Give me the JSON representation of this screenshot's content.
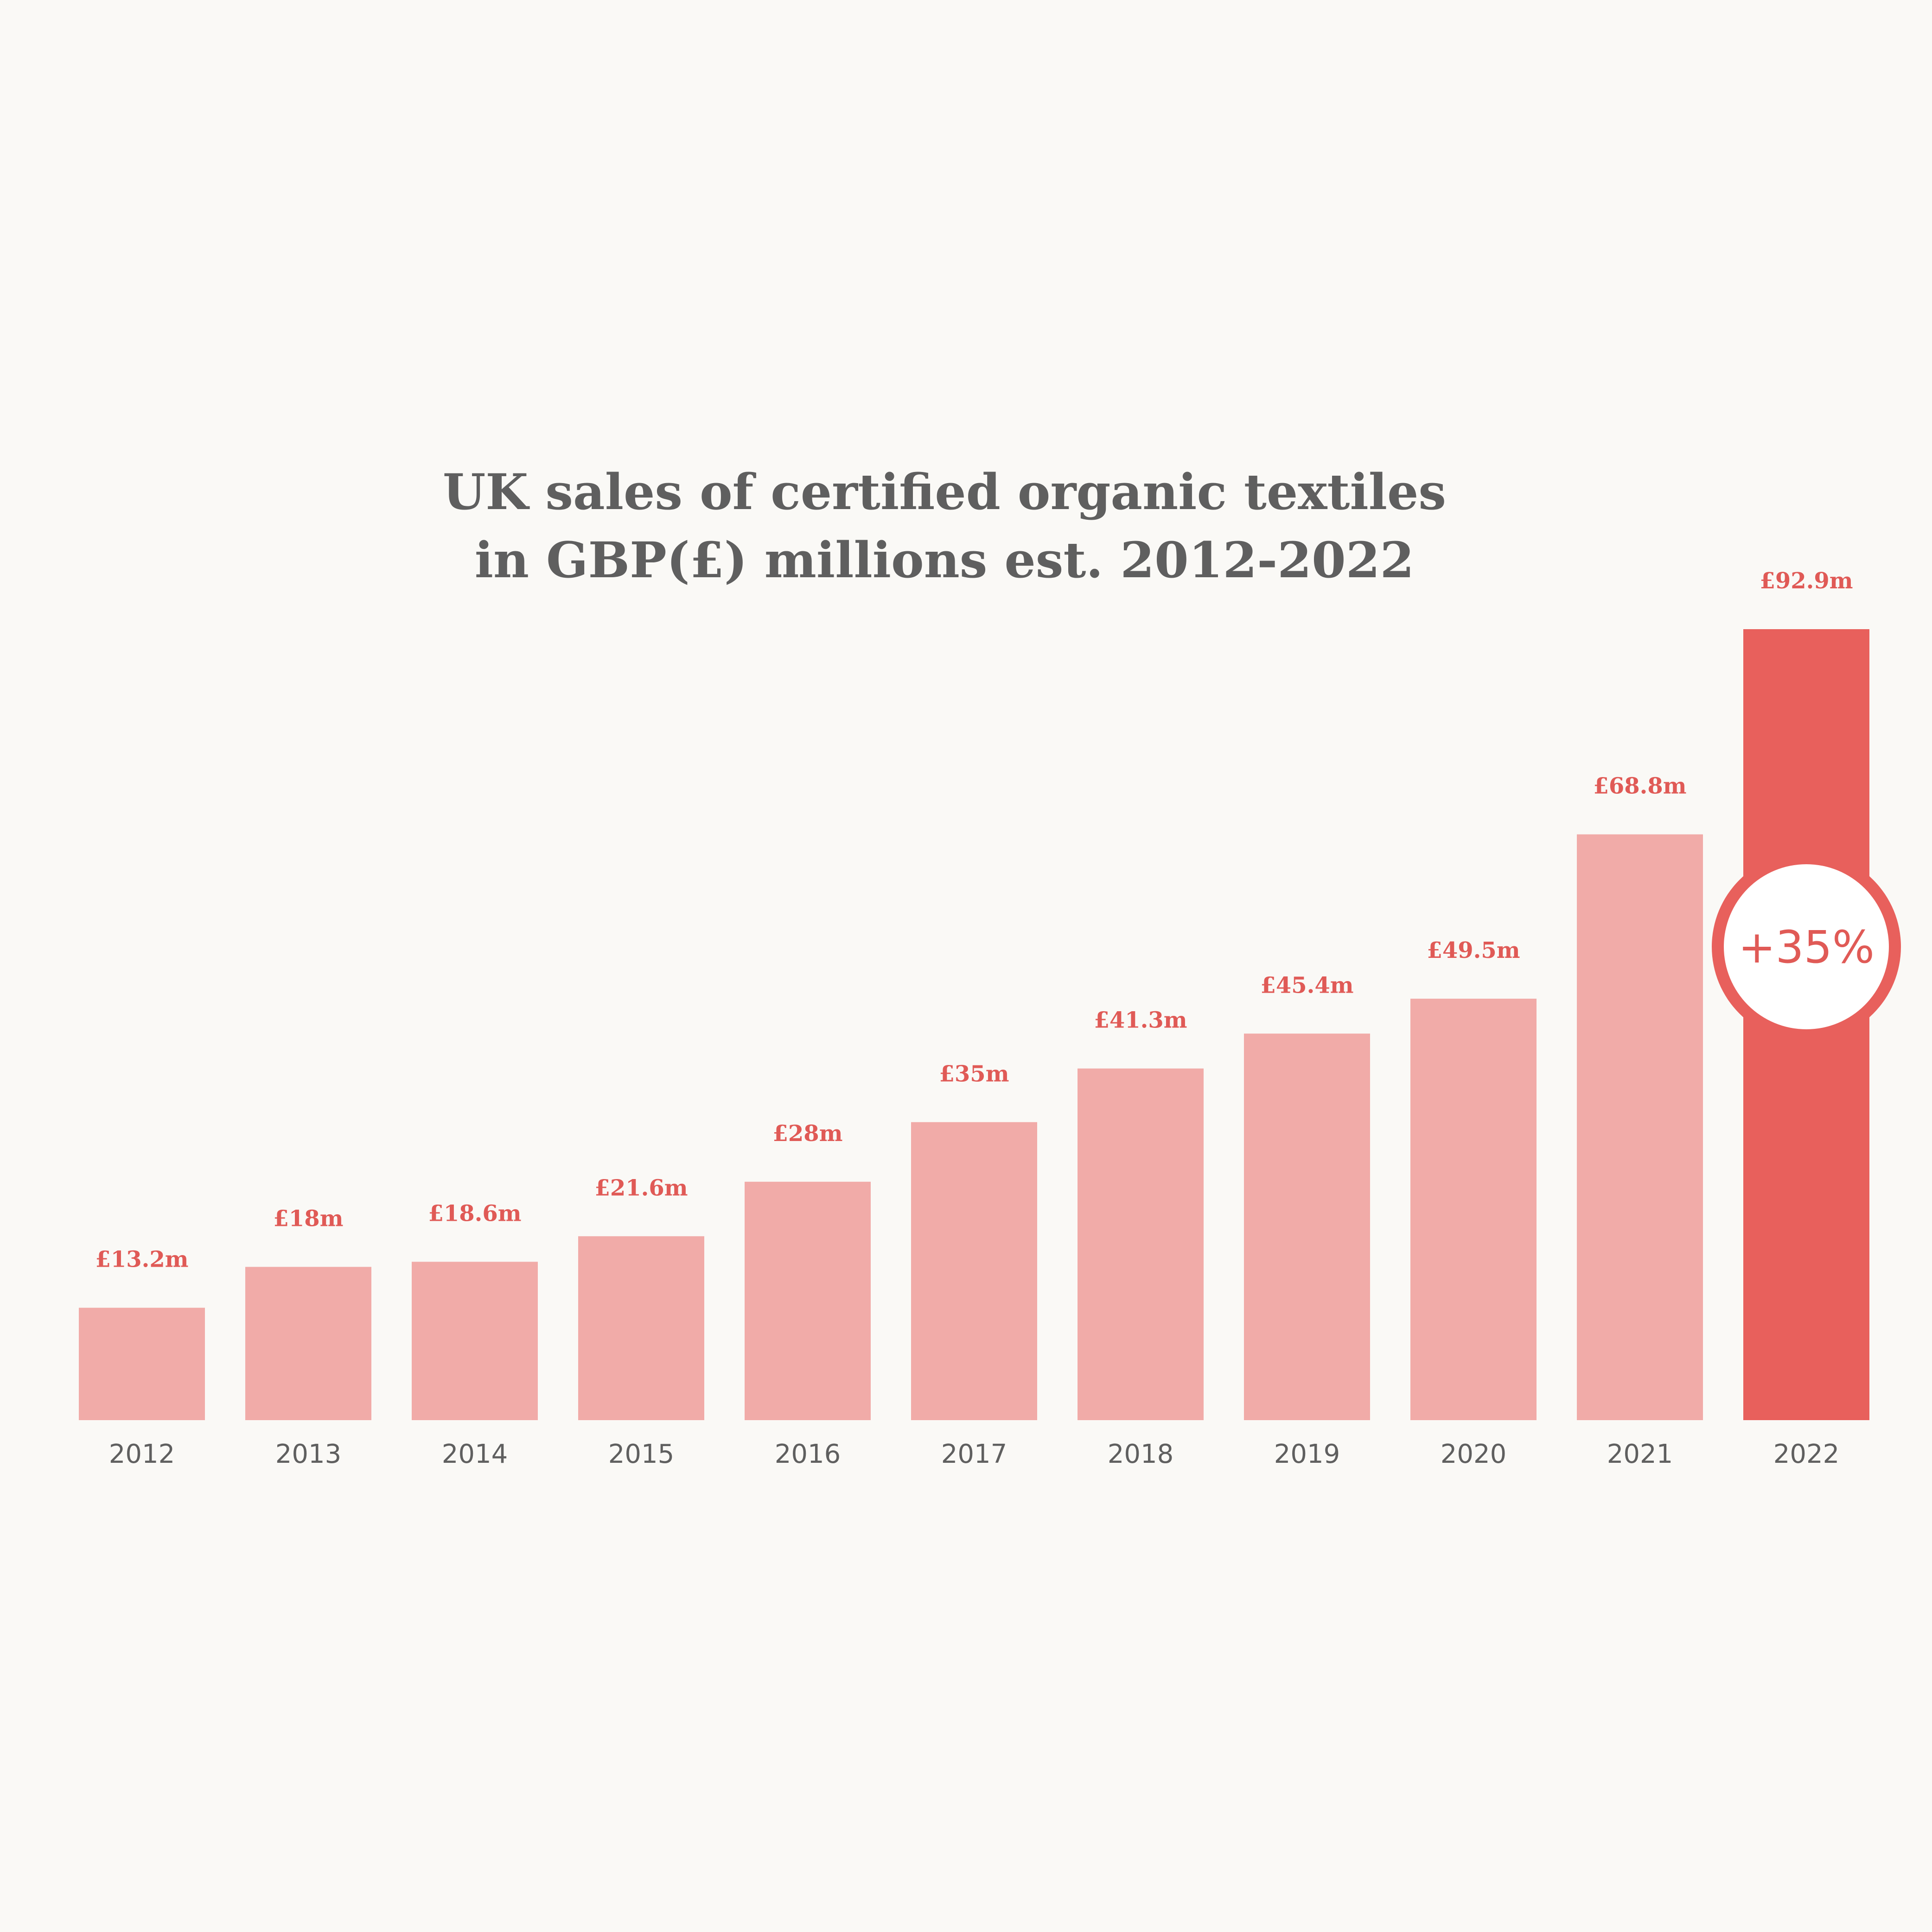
{
  "chart_data": {
    "type": "bar",
    "title_lines": [
      "UK sales of certified organic textiles",
      "in GBP(£) millions est. 2012-2022"
    ],
    "categories": [
      "2012",
      "2013",
      "2014",
      "2015",
      "2016",
      "2017",
      "2018",
      "2019",
      "2020",
      "2021",
      "2022"
    ],
    "values": [
      13.2,
      18,
      18.6,
      21.6,
      28,
      35,
      41.3,
      45.4,
      49.5,
      68.8,
      92.9
    ],
    "value_labels": [
      "£13.2m",
      "£18m",
      "£18.6m",
      "£21.6m",
      "£28m",
      "£35m",
      "£41.3m",
      "£45.4m",
      "£49.5m",
      "£68.8m",
      "£92.9m"
    ],
    "highlight_category": "2022",
    "annotation": "+35%",
    "ylim": [
      0,
      92.9
    ],
    "grid": false,
    "legend": "none",
    "colors": {
      "bar": "#f1aba8",
      "highlight_bar": "#e8605c",
      "value_label": "#e05a56",
      "title": "#5f5f5f",
      "tick_label": "#5f5f5f",
      "background": "#faf9f6",
      "badge_fill": "#ffffff"
    }
  }
}
